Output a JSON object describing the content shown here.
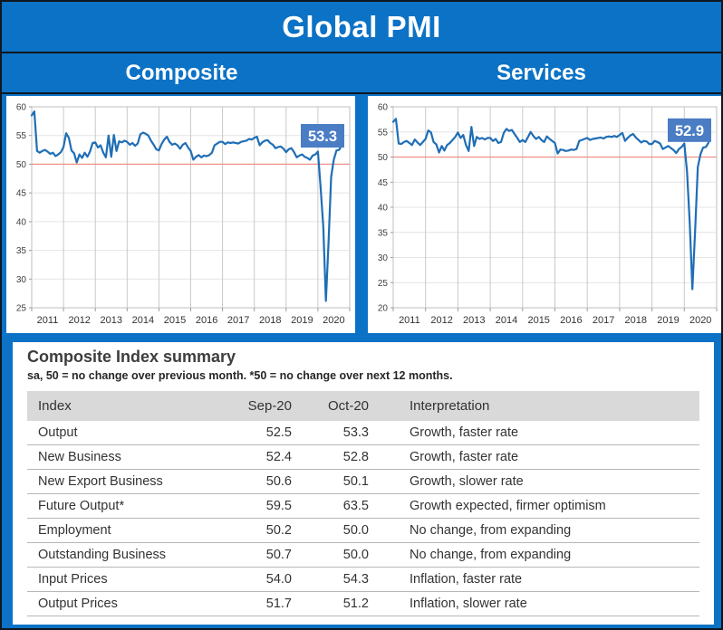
{
  "header": {
    "title": "Global PMI"
  },
  "colors": {
    "background_blue": "#0b72c6",
    "frame_dark": "#10161d",
    "line_blue": "#1f6eb5",
    "ref_line_red": "#ed9289",
    "callout_blue": "#4a7dc4",
    "grid_gray": "#c9c9c9",
    "grid_light": "#e4e4e4",
    "plot_border": "#bfbfbf",
    "axis_gray": "#9a9a9a",
    "axis_text": "#404040",
    "table_header_gray": "#d9d9d9"
  },
  "chart_data": [
    {
      "type": "line",
      "title": "Composite",
      "callout": "53.3",
      "callout_anchor": 57.0,
      "ylim": [
        25,
        60
      ],
      "ytick": 5,
      "ref_line": 50,
      "categories": [
        "2011",
        "2012",
        "2013",
        "2014",
        "2015",
        "2016",
        "2017",
        "2018",
        "2019",
        "2020"
      ],
      "x_unit": "monthly",
      "values": [
        58.5,
        59.2,
        52.3,
        52.0,
        52.3,
        52.5,
        52.2,
        51.8,
        52.0,
        51.4,
        51.7,
        52.1,
        53.0,
        55.4,
        54.6,
        52.4,
        51.9,
        50.3,
        51.7,
        51.1,
        52.0,
        51.3,
        52.2,
        53.7,
        53.8,
        52.9,
        53.3,
        52.0,
        51.2,
        55.0,
        51.3,
        55.1,
        52.3,
        54.0,
        53.8,
        54.1,
        53.9,
        53.4,
        53.7,
        53.2,
        53.6,
        55.2,
        55.5,
        55.3,
        55.0,
        54.1,
        53.4,
        52.6,
        52.4,
        53.5,
        54.3,
        54.8,
        53.9,
        53.4,
        53.6,
        53.3,
        52.7,
        53.4,
        53.7,
        52.9,
        52.3,
        50.8,
        51.3,
        51.6,
        51.2,
        51.5,
        51.4,
        51.6,
        52.0,
        53.3,
        53.6,
        53.9,
        53.9,
        53.5,
        53.8,
        53.7,
        53.8,
        53.7,
        53.6,
        53.9,
        54.0,
        54.1,
        54.4,
        54.3,
        54.6,
        54.8,
        53.3,
        53.8,
        54.1,
        54.2,
        53.7,
        53.4,
        52.8,
        53.0,
        53.1,
        52.7,
        52.1,
        52.6,
        52.8,
        52.1,
        51.2,
        51.5,
        51.7,
        51.3,
        51.1,
        50.8,
        51.5,
        51.7,
        52.2,
        46.1,
        39.2,
        26.2,
        36.3,
        47.8,
        50.8,
        52.4,
        52.5,
        53.3
      ]
    },
    {
      "type": "line",
      "title": "Services",
      "callout": "52.9",
      "callout_anchor": 57.7,
      "ylim": [
        20,
        60
      ],
      "ytick": 5,
      "ref_line": 50,
      "categories": [
        "2011",
        "2012",
        "2013",
        "2014",
        "2015",
        "2016",
        "2017",
        "2018",
        "2019",
        "2020"
      ],
      "x_unit": "monthly",
      "values": [
        57.0,
        57.6,
        52.7,
        52.6,
        53.0,
        53.2,
        52.8,
        52.4,
        53.5,
        52.9,
        52.4,
        53.0,
        53.6,
        55.3,
        54.9,
        53.0,
        52.5,
        50.9,
        52.2,
        51.3,
        52.4,
        52.8,
        53.4,
        54.0,
        54.9,
        53.8,
        54.4,
        52.4,
        51.2,
        56.0,
        52.2,
        54.0,
        53.6,
        53.8,
        53.5,
        53.8,
        53.8,
        53.2,
        53.6,
        52.8,
        53.0,
        54.8,
        55.6,
        55.2,
        55.4,
        54.6,
        53.8,
        53.0,
        53.4,
        53.0,
        54.0,
        55.0,
        54.2,
        53.6,
        54.0,
        53.4,
        53.0,
        54.1,
        53.6,
        53.2,
        52.8,
        50.7,
        51.5,
        51.4,
        51.2,
        51.3,
        51.5,
        51.4,
        51.6,
        53.2,
        53.4,
        53.6,
        53.8,
        53.4,
        53.6,
        53.7,
        53.8,
        53.9,
        53.7,
        54.0,
        54.1,
        54.0,
        54.2,
        54.0,
        54.4,
        54.8,
        53.2,
        53.8,
        54.3,
        54.6,
        53.9,
        53.4,
        52.9,
        53.2,
        53.1,
        52.6,
        52.6,
        53.2,
        53.0,
        52.7,
        51.6,
        51.9,
        52.2,
        51.8,
        51.4,
        50.8,
        51.6,
        52.0,
        52.7,
        47.1,
        36.8,
        23.7,
        35.2,
        48.0,
        50.6,
        51.9,
        52.0,
        52.9
      ]
    }
  ],
  "table": {
    "title": "Composite Index summary",
    "subtitle": "sa, 50 = no change over previous month. *50 = no change over next 12 months.",
    "columns": [
      "Index",
      "Sep-20",
      "Oct-20",
      "Interpretation"
    ],
    "rows": [
      [
        "Output",
        "52.5",
        "53.3",
        "Growth, faster rate"
      ],
      [
        "New Business",
        "52.4",
        "52.8",
        "Growth, faster rate"
      ],
      [
        "New Export Business",
        "50.6",
        "50.1",
        "Growth, slower rate"
      ],
      [
        "Future Output*",
        "59.5",
        "63.5",
        "Growth expected, firmer optimism"
      ],
      [
        "Employment",
        "50.2",
        "50.0",
        "No change, from expanding"
      ],
      [
        "Outstanding Business",
        "50.7",
        "50.0",
        "No change, from expanding"
      ],
      [
        "Input Prices",
        "54.0",
        "54.3",
        "Inflation, faster rate"
      ],
      [
        "Output Prices",
        "51.7",
        "51.2",
        "Inflation, slower rate"
      ]
    ]
  }
}
